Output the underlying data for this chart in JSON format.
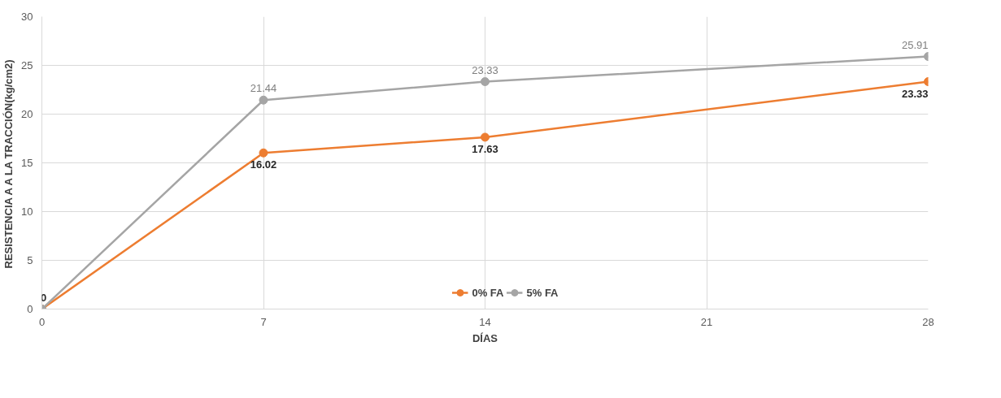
{
  "chart_data": {
    "type": "line",
    "xlabel": "DÍAS",
    "ylabel": "RESISTENCIA A A LA TRACCIÓN(kg/cm2)",
    "x": [
      0,
      7,
      14,
      28
    ],
    "series": [
      {
        "name": "0% FA",
        "color": "#ed7d31",
        "values": [
          0,
          16.02,
          17.63,
          23.33
        ],
        "value_labels": [
          "0",
          "16.02",
          "17.63",
          "23.33"
        ]
      },
      {
        "name": "5% FA",
        "color": "#a5a5a5",
        "values": [
          0,
          21.44,
          23.33,
          25.91
        ],
        "value_labels": [
          null,
          "21.44",
          "23.33",
          "25.91"
        ]
      }
    ],
    "xlim": [
      0,
      28
    ],
    "xticks": [
      0,
      7,
      14,
      21,
      28
    ],
    "ylim": [
      0,
      30
    ],
    "yticks": [
      0,
      5,
      10,
      15,
      20,
      25,
      30
    ],
    "grid": true,
    "legend": "bottom",
    "marker": "circle",
    "line_style": "solid"
  }
}
